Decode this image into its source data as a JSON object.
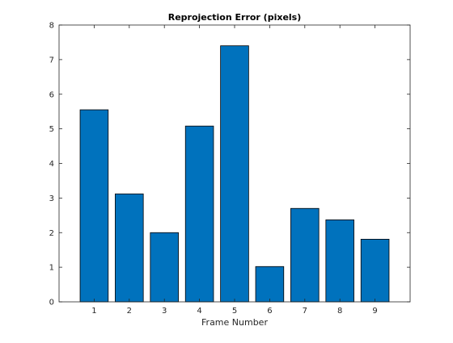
{
  "chart_data": {
    "type": "bar",
    "title": "Reprojection Error (pixels)",
    "xlabel": "Frame Number",
    "ylabel": "",
    "categories": [
      "1",
      "2",
      "3",
      "4",
      "5",
      "6",
      "7",
      "8",
      "9"
    ],
    "values": [
      5.55,
      3.12,
      2.0,
      5.08,
      7.4,
      1.02,
      2.7,
      2.37,
      1.81
    ],
    "ylim": [
      0,
      8
    ],
    "xlim": [
      0,
      10
    ],
    "yticks": [
      "0",
      "1",
      "2",
      "3",
      "4",
      "5",
      "6",
      "7",
      "8"
    ],
    "grid": false,
    "bar_color": "#0072BD",
    "bar_edge_color": "#000000"
  }
}
